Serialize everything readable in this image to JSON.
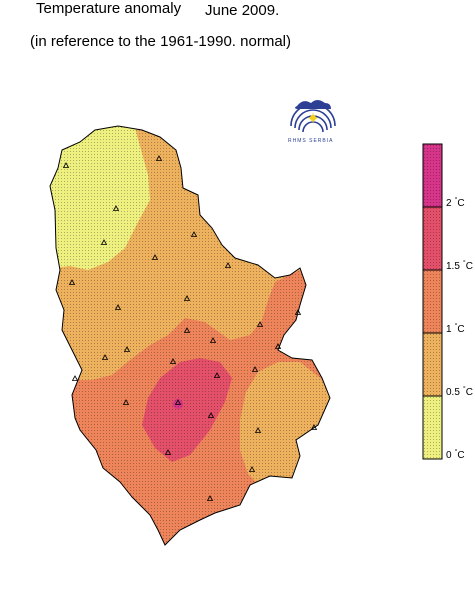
{
  "header": {
    "title": "Temperature anomaly",
    "date": "June 2009.",
    "subtitle": "(in reference to the 1961-1990. normal)"
  },
  "logo": {
    "text": "RHMS SERBIA"
  },
  "legend": {
    "unit": "°C",
    "ticks": [
      {
        "value": "0",
        "unit": "C"
      },
      {
        "value": "0.5",
        "unit": "C"
      },
      {
        "value": "1",
        "unit": "C"
      },
      {
        "value": "1.5",
        "unit": "C"
      },
      {
        "value": "2",
        "unit": "C"
      }
    ],
    "bins": [
      {
        "range": [
          0,
          0.5
        ],
        "color": "#eef080"
      },
      {
        "range": [
          0.5,
          1.0
        ],
        "color": "#eeb25e"
      },
      {
        "range": [
          1.0,
          1.5
        ],
        "color": "#ee855a"
      },
      {
        "range": [
          1.5,
          2.0
        ],
        "color": "#e4506a"
      },
      {
        "range": [
          2.0,
          2.5
        ],
        "color": "#d6358a"
      }
    ]
  }
}
